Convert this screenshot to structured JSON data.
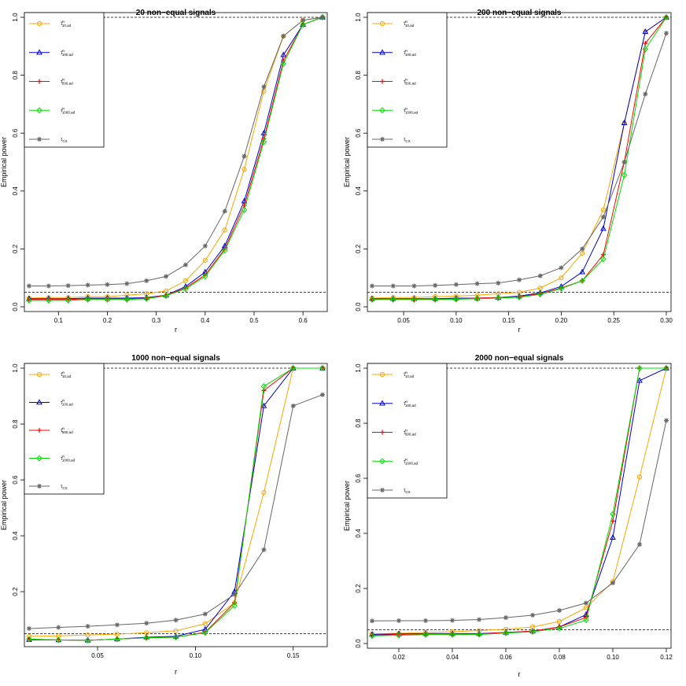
{
  "figure": {
    "legend_entries": [
      {
        "label": "τ̂",
        "sup": "n",
        "sub": "10,ad",
        "color": "#FFA500",
        "marker": "circle"
      },
      {
        "label": "τ̂",
        "sup": "n",
        "sub": "100,ad",
        "color": "#0000CC",
        "marker": "triangle"
      },
      {
        "label": "τ̂",
        "sup": "n",
        "sub": "500,ad",
        "color": "#FF0000",
        "marker": "plus"
      },
      {
        "label": "τ̂",
        "sup": "n",
        "sub": "1000,ad",
        "color": "#00DD00",
        "marker": "diamond"
      },
      {
        "label": "τ",
        "sup": "",
        "sub": "CX",
        "color": "#666666",
        "marker": "star"
      }
    ]
  },
  "chart_data": [
    {
      "type": "line",
      "title": "20 non−equal signals",
      "xlabel": "r",
      "ylabel": "Empirical power",
      "xlim": [
        0.04,
        0.64
      ],
      "ylim": [
        0,
        1
      ],
      "xticks": [
        0.1,
        0.2,
        0.3,
        0.4,
        0.5,
        0.6
      ],
      "xtick_labels": [
        "0.1",
        "0.2",
        "0.3",
        "0.4",
        "0.5",
        "0.6"
      ],
      "yticks": [
        0.0,
        0.2,
        0.4,
        0.6,
        0.8,
        1.0
      ],
      "ytick_labels": [
        "0.0",
        "0.2",
        "0.4",
        "0.6",
        "0.8",
        "1.0"
      ],
      "hlines": [
        0.05,
        1.0
      ],
      "x": [
        0.04,
        0.08,
        0.12,
        0.16,
        0.2,
        0.24,
        0.28,
        0.32,
        0.36,
        0.4,
        0.44,
        0.48,
        0.52,
        0.56,
        0.6,
        0.64
      ],
      "series": [
        {
          "name": "τ̂ n 10,ad",
          "values": [
            0.03,
            0.032,
            0.032,
            0.035,
            0.035,
            0.04,
            0.045,
            0.055,
            0.09,
            0.16,
            0.265,
            0.475,
            0.745,
            0.935,
            0.99,
            1.0
          ]
        },
        {
          "name": "τ̂ n 100,ad",
          "values": [
            0.028,
            0.028,
            0.028,
            0.03,
            0.03,
            0.03,
            0.032,
            0.04,
            0.07,
            0.12,
            0.21,
            0.365,
            0.6,
            0.87,
            0.975,
            1.0
          ]
        },
        {
          "name": "τ̂ n 500,ad",
          "values": [
            0.025,
            0.025,
            0.025,
            0.028,
            0.028,
            0.028,
            0.03,
            0.04,
            0.065,
            0.11,
            0.2,
            0.35,
            0.58,
            0.85,
            0.975,
            1.0
          ]
        },
        {
          "name": "τ̂ n 1000,ad",
          "values": [
            0.022,
            0.022,
            0.022,
            0.025,
            0.025,
            0.025,
            0.028,
            0.038,
            0.062,
            0.105,
            0.195,
            0.335,
            0.57,
            0.84,
            0.975,
            1.0
          ]
        },
        {
          "name": "τ CX",
          "values": [
            0.072,
            0.072,
            0.073,
            0.075,
            0.077,
            0.08,
            0.09,
            0.105,
            0.145,
            0.21,
            0.33,
            0.52,
            0.76,
            0.935,
            0.99,
            1.0
          ]
        }
      ]
    },
    {
      "type": "line",
      "title": "200 non−equal signals",
      "xlabel": "r",
      "ylabel": "Empirical power",
      "xlim": [
        0.02,
        0.3
      ],
      "ylim": [
        0,
        1
      ],
      "xticks": [
        0.05,
        0.1,
        0.15,
        0.2,
        0.25,
        0.3
      ],
      "xtick_labels": [
        "0.05",
        "0.10",
        "0.15",
        "0.20",
        "0.25",
        "0.30"
      ],
      "yticks": [
        0.0,
        0.2,
        0.4,
        0.6,
        0.8,
        1.0
      ],
      "ytick_labels": [
        "0.0",
        "0.2",
        "0.4",
        "0.6",
        "0.8",
        "1.0"
      ],
      "hlines": [
        0.05,
        1.0
      ],
      "x": [
        0.02,
        0.04,
        0.06,
        0.08,
        0.1,
        0.12,
        0.14,
        0.16,
        0.18,
        0.2,
        0.22,
        0.24,
        0.26,
        0.28,
        0.3
      ],
      "series": [
        {
          "name": "τ̂ n 10,ad",
          "values": [
            0.03,
            0.032,
            0.032,
            0.035,
            0.037,
            0.04,
            0.045,
            0.05,
            0.065,
            0.1,
            0.185,
            0.335,
            0.635,
            0.95,
            1.0
          ]
        },
        {
          "name": "τ̂ n 100,ad",
          "values": [
            0.028,
            0.028,
            0.028,
            0.028,
            0.03,
            0.03,
            0.032,
            0.037,
            0.048,
            0.07,
            0.12,
            0.27,
            0.635,
            0.95,
            1.0
          ]
        },
        {
          "name": "τ̂ n 500,ad",
          "values": [
            0.026,
            0.026,
            0.026,
            0.026,
            0.028,
            0.03,
            0.032,
            0.035,
            0.045,
            0.065,
            0.09,
            0.18,
            0.5,
            0.91,
            1.0
          ]
        },
        {
          "name": "τ̂ n 1000,ad",
          "values": [
            0.025,
            0.025,
            0.025,
            0.025,
            0.026,
            0.028,
            0.03,
            0.033,
            0.043,
            0.063,
            0.09,
            0.165,
            0.455,
            0.89,
            1.0
          ]
        },
        {
          "name": "τ CX",
          "values": [
            0.072,
            0.072,
            0.072,
            0.074,
            0.077,
            0.08,
            0.082,
            0.093,
            0.107,
            0.135,
            0.2,
            0.31,
            0.5,
            0.735,
            0.945
          ]
        }
      ]
    },
    {
      "type": "line",
      "title": "1000 non−equal signals",
      "xlabel": "r",
      "ylabel": "Empirical power",
      "xlim": [
        0.015,
        0.165
      ],
      "ylim": [
        0.02,
        1.0
      ],
      "xticks": [
        0.05,
        0.1,
        0.15
      ],
      "xtick_labels": [
        "0.05",
        "0.10",
        "0.15"
      ],
      "yticks": [
        0.2,
        0.4,
        0.6,
        0.8,
        1.0
      ],
      "ytick_labels": [
        "0.2",
        "0.4",
        "0.6",
        "0.8",
        "1.0"
      ],
      "hlines": [
        0.05,
        1.0
      ],
      "x": [
        0.015,
        0.03,
        0.045,
        0.06,
        0.075,
        0.09,
        0.105,
        0.12,
        0.135,
        0.15,
        0.165
      ],
      "series": [
        {
          "name": "τ̂ n 10,ad",
          "values": [
            0.04,
            0.042,
            0.045,
            0.048,
            0.053,
            0.06,
            0.085,
            0.16,
            0.555,
            1.0,
            1.0
          ]
        },
        {
          "name": "τ̂ n 100,ad",
          "values": [
            0.028,
            0.027,
            0.026,
            0.03,
            0.037,
            0.04,
            0.065,
            0.2,
            0.865,
            1.0,
            1.0
          ]
        },
        {
          "name": "τ̂ n 500,ad",
          "values": [
            0.03,
            0.027,
            0.026,
            0.03,
            0.035,
            0.037,
            0.055,
            0.16,
            0.92,
            1.0,
            1.0
          ]
        },
        {
          "name": "τ̂ n 1000,ad",
          "values": [
            0.03,
            0.027,
            0.026,
            0.03,
            0.035,
            0.037,
            0.053,
            0.15,
            0.935,
            1.0,
            1.0
          ]
        },
        {
          "name": "τ CX",
          "values": [
            0.068,
            0.072,
            0.076,
            0.081,
            0.087,
            0.098,
            0.12,
            0.19,
            0.35,
            0.865,
            0.905
          ]
        }
      ]
    },
    {
      "type": "line",
      "title": "2000 non−equal signals",
      "xlabel": "r",
      "ylabel": "Empirical power",
      "xlim": [
        0.01,
        0.12
      ],
      "ylim": [
        0,
        1
      ],
      "xticks": [
        0.02,
        0.04,
        0.06,
        0.08,
        0.1,
        0.12
      ],
      "xtick_labels": [
        "0.02",
        "0.04",
        "0.06",
        "0.08",
        "0.10",
        "0.12"
      ],
      "yticks": [
        0.0,
        0.2,
        0.4,
        0.6,
        0.8,
        1.0
      ],
      "ytick_labels": [
        "0.0",
        "0.2",
        "0.4",
        "0.6",
        "0.8",
        "1.0"
      ],
      "hlines": [
        0.05,
        1.0
      ],
      "x": [
        0.01,
        0.02,
        0.03,
        0.04,
        0.05,
        0.06,
        0.07,
        0.08,
        0.09,
        0.1,
        0.11,
        0.12
      ],
      "series": [
        {
          "name": "τ̂ n 10,ad",
          "values": [
            0.035,
            0.037,
            0.04,
            0.043,
            0.047,
            0.052,
            0.06,
            0.08,
            0.13,
            0.225,
            0.605,
            1.0
          ]
        },
        {
          "name": "τ̂ n 100,ad",
          "values": [
            0.033,
            0.035,
            0.036,
            0.036,
            0.036,
            0.04,
            0.045,
            0.06,
            0.105,
            0.385,
            0.955,
            1.0
          ]
        },
        {
          "name": "τ̂ n 500,ad",
          "values": [
            0.03,
            0.033,
            0.035,
            0.035,
            0.035,
            0.04,
            0.045,
            0.06,
            0.095,
            0.445,
            1.0,
            1.0
          ]
        },
        {
          "name": "τ̂ n 1000,ad",
          "values": [
            0.028,
            0.03,
            0.032,
            0.032,
            0.033,
            0.038,
            0.043,
            0.055,
            0.085,
            0.47,
            1.0,
            1.0
          ]
        },
        {
          "name": "τ CX",
          "values": [
            0.082,
            0.083,
            0.083,
            0.084,
            0.087,
            0.094,
            0.103,
            0.12,
            0.147,
            0.22,
            0.36,
            0.81
          ]
        }
      ]
    }
  ]
}
